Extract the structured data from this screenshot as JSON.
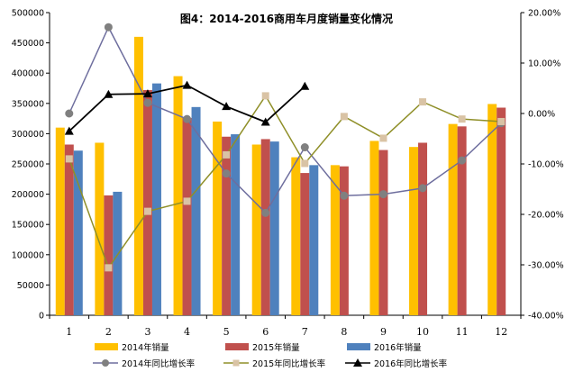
{
  "chart_data": {
    "type": "bar",
    "title": "图4：2014-2016商用车月度销量变化情况",
    "categories": [
      "1",
      "2",
      "3",
      "4",
      "5",
      "6",
      "7",
      "8",
      "9",
      "10",
      "11",
      "12"
    ],
    "left_axis": {
      "min": 0,
      "max": 500000,
      "step": 50000,
      "ticks": [
        "0",
        "50000",
        "100000",
        "150000",
        "200000",
        "250000",
        "300000",
        "350000",
        "400000",
        "450000",
        "500000"
      ]
    },
    "right_axis": {
      "min": -40,
      "max": 20,
      "step": 10,
      "ticks": [
        "-40.00%",
        "-30.00%",
        "-20.00%",
        "-10.00%",
        "0.00%",
        "10.00%",
        "20.00%"
      ]
    },
    "bar_series": [
      {
        "name": "2014年销量",
        "color": "#FFC000",
        "values": [
          310000,
          285000,
          460000,
          395000,
          320000,
          282000,
          261000,
          248000,
          288000,
          278000,
          316000,
          349000
        ]
      },
      {
        "name": "2015年销量",
        "color": "#C0504D",
        "values": [
          282000,
          198000,
          372000,
          326000,
          295000,
          291000,
          235000,
          246000,
          273000,
          285000,
          312000,
          343000
        ]
      },
      {
        "name": "2016年销量",
        "color": "#4F81BD",
        "values": [
          272000,
          204000,
          383000,
          344000,
          299000,
          287000,
          248000,
          null,
          null,
          null,
          null,
          null
        ]
      }
    ],
    "line_series": [
      {
        "name": "2014年同比增长率",
        "color": "#6E6E9E",
        "marker": "circle",
        "marker_color": "#808080",
        "values": [
          0.0,
          17.1,
          2.1,
          -1.1,
          -11.9,
          -19.7,
          -6.7,
          -16.3,
          -16.0,
          -14.8,
          -9.3,
          -1.9
        ]
      },
      {
        "name": "2015年同比增长率",
        "color": "#8F8F28",
        "marker": "square",
        "marker_color": "#D9C3A5",
        "values": [
          -9.0,
          -30.6,
          -19.4,
          -17.4,
          -8.2,
          3.5,
          -9.9,
          -0.6,
          -4.9,
          2.3,
          -1.1,
          -1.6
        ]
      },
      {
        "name": "2016年同比增长率",
        "color": "#000000",
        "marker": "triangle",
        "marker_color": "#000000",
        "values": [
          -3.5,
          3.8,
          3.9,
          5.6,
          1.4,
          -1.7,
          5.4,
          null,
          null,
          null,
          null,
          null
        ]
      }
    ],
    "legend_position": "bottom",
    "grid": false
  }
}
